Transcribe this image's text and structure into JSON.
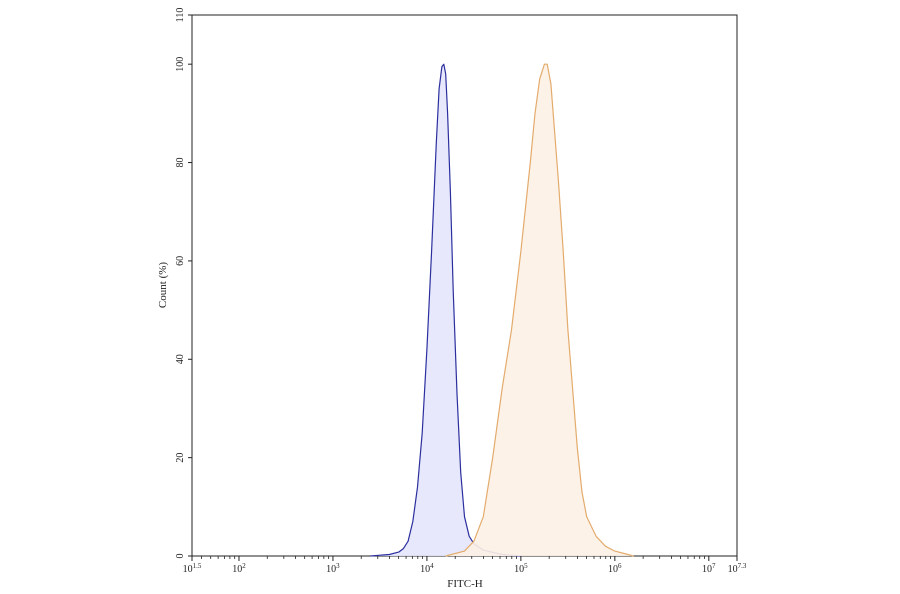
{
  "chart_data": {
    "type": "area",
    "title": "",
    "xlabel": "FITC-H",
    "ylabel": "Count (%)",
    "x_scale": "log10",
    "xlim": [
      1.5,
      7.3
    ],
    "ylim": [
      0,
      110
    ],
    "grid": false,
    "legend": "none",
    "x_ticks": [
      {
        "value": 1.5,
        "base": "10",
        "exp": "1.5"
      },
      {
        "value": 2,
        "base": "10",
        "exp": "2"
      },
      {
        "value": 3,
        "base": "10",
        "exp": "3"
      },
      {
        "value": 4,
        "base": "10",
        "exp": "4"
      },
      {
        "value": 5,
        "base": "10",
        "exp": "5"
      },
      {
        "value": 6,
        "base": "10",
        "exp": "6"
      },
      {
        "value": 7,
        "base": "10",
        "exp": "7"
      },
      {
        "value": 7.3,
        "base": "10",
        "exp": "7.3"
      }
    ],
    "y_ticks": [
      "0",
      "20",
      "40",
      "60",
      "80",
      "100",
      "110"
    ],
    "series": [
      {
        "color": "#2b2f9e",
        "fill": "#e4e5fb",
        "x_log10": [
          3.4,
          3.6,
          3.7,
          3.75,
          3.8,
          3.85,
          3.9,
          3.95,
          4.0,
          4.05,
          4.1,
          4.13,
          4.16,
          4.18,
          4.2,
          4.22,
          4.25,
          4.28,
          4.32,
          4.36,
          4.4,
          4.45,
          4.5,
          4.6,
          4.8,
          5.0
        ],
        "y": [
          0,
          0.3,
          0.8,
          1.5,
          3,
          7,
          14,
          25,
          42,
          62,
          84,
          95,
          99.5,
          100,
          98,
          90,
          74,
          54,
          33,
          17,
          8,
          4,
          2.5,
          1.2,
          0.3,
          0
        ]
      },
      {
        "color": "#e3ab6c",
        "fill": "#fdf1e6",
        "x_log10": [
          4.2,
          4.4,
          4.5,
          4.6,
          4.7,
          4.8,
          4.9,
          5.0,
          5.1,
          5.15,
          5.2,
          5.25,
          5.28,
          5.32,
          5.36,
          5.4,
          5.45,
          5.5,
          5.55,
          5.6,
          5.65,
          5.7,
          5.8,
          5.9,
          6.0,
          6.1,
          6.2
        ],
        "y": [
          0,
          1,
          3,
          8,
          20,
          34,
          46,
          62,
          80,
          90,
          97,
          100,
          100,
          96,
          86,
          76,
          62,
          46,
          34,
          22,
          13,
          8,
          4,
          2,
          1,
          0.5,
          0
        ]
      }
    ]
  }
}
